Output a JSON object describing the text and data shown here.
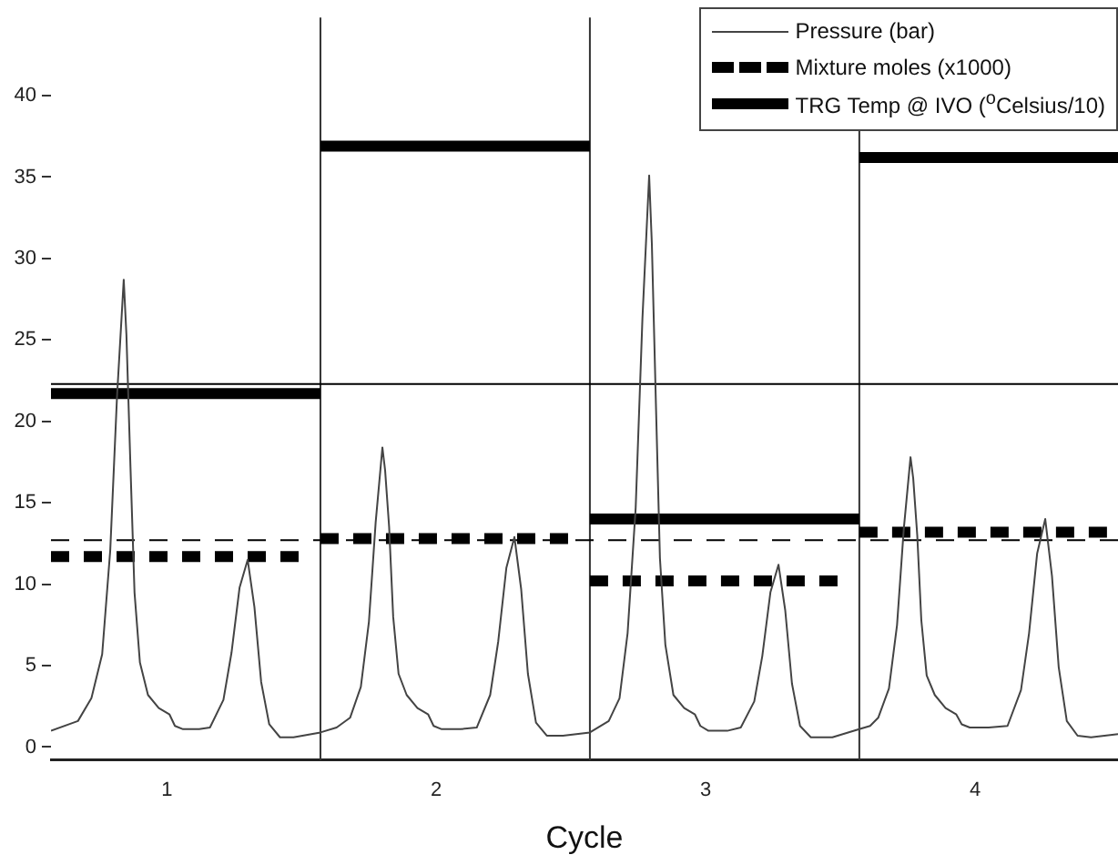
{
  "chart_data": {
    "type": "line",
    "xlabel": "Cycle",
    "legend": "top right",
    "grid": false,
    "marker": "none",
    "xlim": [
      0.57,
      4.53
    ],
    "ylim": [
      -0.8,
      44.8
    ],
    "xticks": [
      1,
      2,
      3,
      4
    ],
    "yticks": [
      0,
      5,
      10,
      15,
      20,
      25,
      30,
      35,
      40
    ],
    "ref_lines": [
      {
        "axis": "x",
        "value": 1.57,
        "color": "#333333",
        "line_style": "solid"
      },
      {
        "axis": "x",
        "value": 2.57,
        "color": "#333333",
        "line_style": "solid"
      },
      {
        "axis": "x",
        "value": 3.57,
        "color": "#333333",
        "line_style": "solid"
      },
      {
        "axis": "y",
        "value": 22.3,
        "color": "#000000",
        "line_style": "solid"
      },
      {
        "axis": "y",
        "value": 12.7,
        "color": "#000000",
        "line_style": "dashed"
      }
    ],
    "series": [
      {
        "name": "Pressure (bar)",
        "color": "#444444",
        "line_style": "solid",
        "x": [
          0.57,
          0.67,
          0.72,
          0.76,
          0.79,
          0.815,
          0.84,
          0.85,
          0.865,
          0.88,
          0.9,
          0.93,
          0.97,
          1.01,
          1.03,
          1.06,
          1.12,
          1.16,
          1.21,
          1.24,
          1.27,
          1.3,
          1.325,
          1.35,
          1.38,
          1.42,
          1.47,
          1.57,
          1.63,
          1.68,
          1.72,
          1.75,
          1.775,
          1.8,
          1.81,
          1.825,
          1.84,
          1.86,
          1.89,
          1.93,
          1.97,
          1.99,
          2.02,
          2.09,
          2.15,
          2.2,
          2.23,
          2.26,
          2.29,
          2.315,
          2.34,
          2.37,
          2.41,
          2.47,
          2.57,
          2.64,
          2.68,
          2.71,
          2.74,
          2.765,
          2.79,
          2.8,
          2.815,
          2.83,
          2.85,
          2.88,
          2.92,
          2.96,
          2.98,
          3.01,
          3.08,
          3.13,
          3.18,
          3.21,
          3.24,
          3.27,
          3.295,
          3.32,
          3.35,
          3.39,
          3.47,
          3.57,
          3.61,
          3.64,
          3.68,
          3.71,
          3.735,
          3.76,
          3.77,
          3.785,
          3.8,
          3.82,
          3.85,
          3.89,
          3.93,
          3.95,
          3.98,
          4.05,
          4.12,
          4.17,
          4.2,
          4.23,
          4.26,
          4.285,
          4.31,
          4.34,
          4.38,
          4.43,
          4.53
        ],
        "values": [
          1.0,
          1.6,
          3.0,
          5.7,
          12.1,
          21.5,
          28.7,
          25.3,
          17.2,
          9.5,
          5.2,
          3.2,
          2.4,
          2.0,
          1.3,
          1.1,
          1.1,
          1.2,
          2.9,
          5.8,
          9.8,
          11.5,
          8.6,
          4.0,
          1.4,
          0.6,
          0.6,
          0.9,
          1.2,
          1.8,
          3.7,
          7.7,
          13.8,
          18.4,
          17.0,
          13.5,
          8.0,
          4.5,
          3.2,
          2.4,
          2.0,
          1.3,
          1.1,
          1.1,
          1.2,
          3.2,
          6.5,
          11.0,
          12.9,
          9.7,
          4.5,
          1.5,
          0.7,
          0.7,
          0.9,
          1.6,
          3.0,
          7.0,
          14.7,
          26.3,
          35.1,
          30.9,
          21.1,
          11.6,
          6.3,
          3.2,
          2.4,
          2.0,
          1.3,
          1.0,
          1.0,
          1.2,
          2.8,
          5.6,
          9.5,
          11.2,
          8.4,
          3.9,
          1.3,
          0.6,
          0.6,
          1.1,
          1.3,
          1.8,
          3.6,
          7.5,
          13.4,
          17.8,
          16.5,
          13.0,
          7.8,
          4.4,
          3.2,
          2.4,
          2.0,
          1.4,
          1.2,
          1.2,
          1.3,
          3.5,
          7.0,
          11.9,
          14.0,
          10.5,
          4.9,
          1.6,
          0.7,
          0.6,
          0.8
        ]
      },
      {
        "name": "Mixture moles (x1000)",
        "color": "#000000",
        "line_style": "dashed",
        "x": [
          0.57,
          1.52,
          null,
          1.57,
          2.52,
          null,
          2.57,
          3.52,
          null,
          3.57,
          4.53
        ],
        "values": [
          11.7,
          11.7,
          null,
          12.8,
          12.8,
          null,
          10.2,
          10.2,
          null,
          13.2,
          13.2
        ]
      },
      {
        "name": "TRG Temp @ IVO ($^{o}$Celsius/10)",
        "color": "#000000",
        "line_style": "solid",
        "x": [
          0.57,
          1.57,
          null,
          1.57,
          2.57,
          null,
          2.57,
          3.57,
          null,
          3.57,
          4.53
        ],
        "values": [
          21.7,
          21.7,
          null,
          36.9,
          36.9,
          null,
          14.0,
          14.0,
          null,
          36.2,
          36.2
        ]
      }
    ]
  }
}
